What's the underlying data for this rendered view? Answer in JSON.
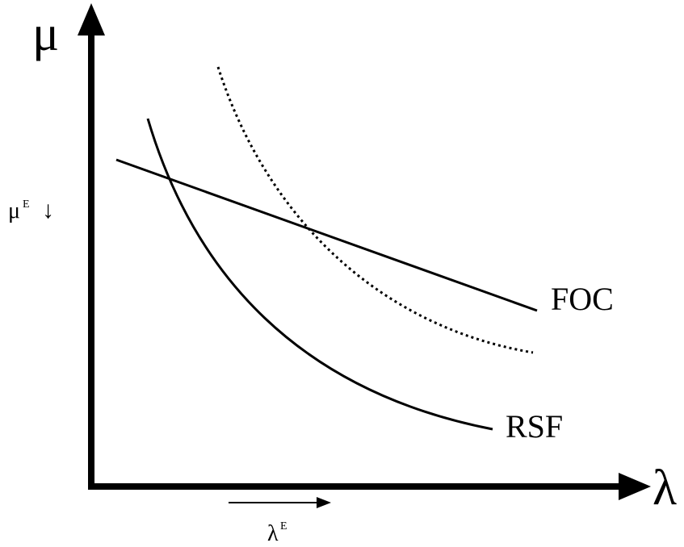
{
  "axes": {
    "y_label": "μ",
    "x_label": "λ"
  },
  "curves": {
    "foc_label": "FOC",
    "rsf_label": "RSF"
  },
  "equilibrium": {
    "mu_label": "μ",
    "mu_sup": "E",
    "mu_arrow": "↓",
    "lambda_label": "λ",
    "lambda_sup": "E"
  },
  "colors": {
    "ink": "#000000",
    "background": "#ffffff"
  }
}
